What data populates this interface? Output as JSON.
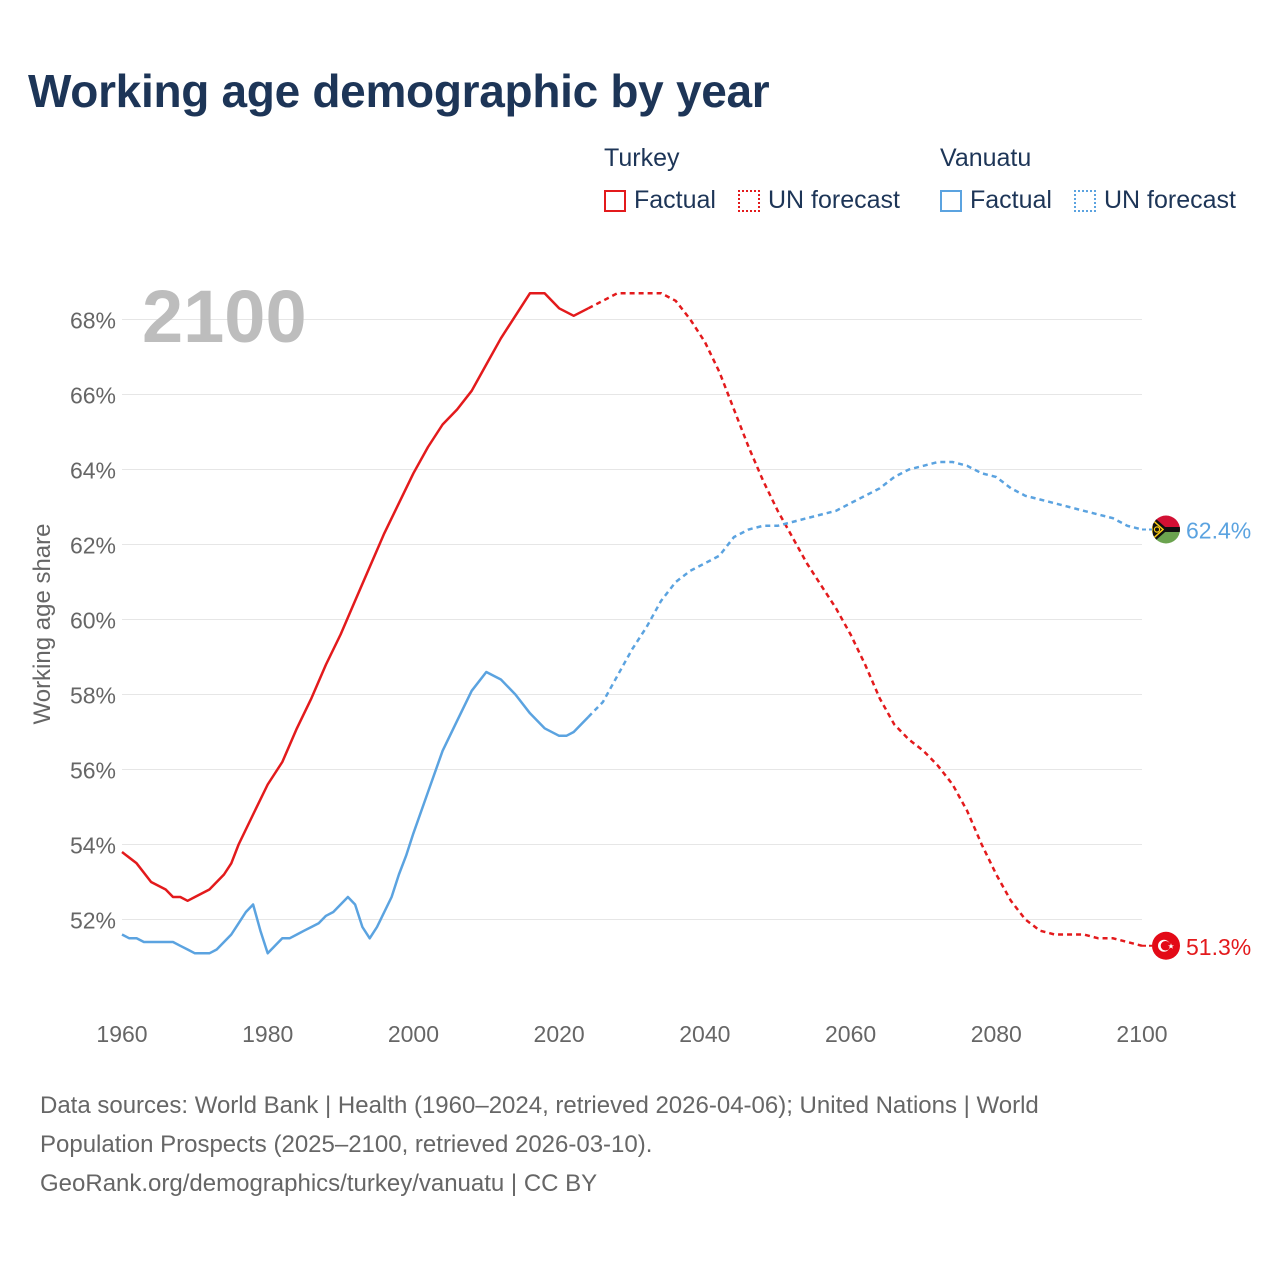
{
  "title": "Working age demographic by year",
  "legend": {
    "groups": [
      {
        "name": "Turkey",
        "factual_label": "Factual",
        "forecast_label": "UN forecast",
        "color": "#e31a1c"
      },
      {
        "name": "Vanuatu",
        "factual_label": "Factual",
        "forecast_label": "UN forecast",
        "color": "#5ba3e0"
      }
    ]
  },
  "year_label": "2100",
  "footer": {
    "line1": "Data sources: World Bank | Health (1960–2024, retrieved 2026-04-06); United Nations | World",
    "line2": "Population Prospects (2025–2100, retrieved 2026-03-10).",
    "line3": "GeoRank.org/demographics/turkey/vanuatu | CC BY"
  },
  "chart_data": {
    "type": "line",
    "title": "Working age demographic by year",
    "xlabel": "",
    "ylabel": "Working age share",
    "xlim": [
      1960,
      2100
    ],
    "ylim": [
      50,
      69.5
    ],
    "x_ticks": [
      1960,
      1980,
      2000,
      2020,
      2040,
      2060,
      2080,
      2100
    ],
    "y_ticks": [
      52,
      54,
      56,
      58,
      60,
      62,
      64,
      66,
      68
    ],
    "y_tick_suffix": "%",
    "grid": true,
    "factual_end_year": 2024,
    "series": [
      {
        "name": "Turkey",
        "color": "#e31a1c",
        "end_label": "51.3%",
        "points": [
          [
            1960,
            53.8
          ],
          [
            1962,
            53.5
          ],
          [
            1964,
            53.0
          ],
          [
            1966,
            52.8
          ],
          [
            1967,
            52.6
          ],
          [
            1968,
            52.6
          ],
          [
            1969,
            52.5
          ],
          [
            1970,
            52.6
          ],
          [
            1972,
            52.8
          ],
          [
            1974,
            53.2
          ],
          [
            1975,
            53.5
          ],
          [
            1976,
            54.0
          ],
          [
            1978,
            54.8
          ],
          [
            1980,
            55.6
          ],
          [
            1982,
            56.2
          ],
          [
            1984,
            57.1
          ],
          [
            1986,
            57.9
          ],
          [
            1988,
            58.8
          ],
          [
            1990,
            59.6
          ],
          [
            1992,
            60.5
          ],
          [
            1994,
            61.4
          ],
          [
            1996,
            62.3
          ],
          [
            1998,
            63.1
          ],
          [
            2000,
            63.9
          ],
          [
            2002,
            64.6
          ],
          [
            2004,
            65.2
          ],
          [
            2006,
            65.6
          ],
          [
            2008,
            66.1
          ],
          [
            2010,
            66.8
          ],
          [
            2012,
            67.5
          ],
          [
            2014,
            68.1
          ],
          [
            2016,
            68.7
          ],
          [
            2018,
            68.7
          ],
          [
            2020,
            68.3
          ],
          [
            2022,
            68.1
          ],
          [
            2024,
            68.3
          ],
          [
            2026,
            68.5
          ],
          [
            2028,
            68.7
          ],
          [
            2030,
            68.7
          ],
          [
            2032,
            68.7
          ],
          [
            2034,
            68.7
          ],
          [
            2036,
            68.5
          ],
          [
            2038,
            68.0
          ],
          [
            2040,
            67.4
          ],
          [
            2042,
            66.6
          ],
          [
            2044,
            65.6
          ],
          [
            2046,
            64.6
          ],
          [
            2048,
            63.7
          ],
          [
            2050,
            62.9
          ],
          [
            2052,
            62.2
          ],
          [
            2054,
            61.5
          ],
          [
            2056,
            60.9
          ],
          [
            2058,
            60.3
          ],
          [
            2060,
            59.6
          ],
          [
            2062,
            58.8
          ],
          [
            2064,
            57.9
          ],
          [
            2066,
            57.2
          ],
          [
            2068,
            56.8
          ],
          [
            2070,
            56.5
          ],
          [
            2072,
            56.1
          ],
          [
            2074,
            55.6
          ],
          [
            2076,
            54.9
          ],
          [
            2078,
            54.0
          ],
          [
            2080,
            53.2
          ],
          [
            2082,
            52.5
          ],
          [
            2084,
            52.0
          ],
          [
            2086,
            51.7
          ],
          [
            2088,
            51.6
          ],
          [
            2090,
            51.6
          ],
          [
            2092,
            51.6
          ],
          [
            2094,
            51.5
          ],
          [
            2096,
            51.5
          ],
          [
            2098,
            51.4
          ],
          [
            2100,
            51.3
          ]
        ]
      },
      {
        "name": "Vanuatu",
        "color": "#5ba3e0",
        "end_label": "62.4%",
        "points": [
          [
            1960,
            51.6
          ],
          [
            1961,
            51.5
          ],
          [
            1962,
            51.5
          ],
          [
            1963,
            51.4
          ],
          [
            1964,
            51.4
          ],
          [
            1965,
            51.4
          ],
          [
            1966,
            51.4
          ],
          [
            1967,
            51.4
          ],
          [
            1968,
            51.3
          ],
          [
            1969,
            51.2
          ],
          [
            1970,
            51.1
          ],
          [
            1971,
            51.1
          ],
          [
            1972,
            51.1
          ],
          [
            1973,
            51.2
          ],
          [
            1974,
            51.4
          ],
          [
            1975,
            51.6
          ],
          [
            1976,
            51.9
          ],
          [
            1977,
            52.2
          ],
          [
            1978,
            52.4
          ],
          [
            1979,
            51.7
          ],
          [
            1980,
            51.1
          ],
          [
            1981,
            51.3
          ],
          [
            1982,
            51.5
          ],
          [
            1983,
            51.5
          ],
          [
            1984,
            51.6
          ],
          [
            1985,
            51.7
          ],
          [
            1986,
            51.8
          ],
          [
            1987,
            51.9
          ],
          [
            1988,
            52.1
          ],
          [
            1989,
            52.2
          ],
          [
            1990,
            52.4
          ],
          [
            1991,
            52.6
          ],
          [
            1992,
            52.4
          ],
          [
            1993,
            51.8
          ],
          [
            1994,
            51.5
          ],
          [
            1995,
            51.8
          ],
          [
            1996,
            52.2
          ],
          [
            1997,
            52.6
          ],
          [
            1998,
            53.2
          ],
          [
            1999,
            53.7
          ],
          [
            2000,
            54.3
          ],
          [
            2002,
            55.4
          ],
          [
            2004,
            56.5
          ],
          [
            2006,
            57.3
          ],
          [
            2008,
            58.1
          ],
          [
            2010,
            58.6
          ],
          [
            2012,
            58.4
          ],
          [
            2014,
            58.0
          ],
          [
            2016,
            57.5
          ],
          [
            2018,
            57.1
          ],
          [
            2020,
            56.9
          ],
          [
            2021,
            56.9
          ],
          [
            2022,
            57.0
          ],
          [
            2024,
            57.4
          ],
          [
            2026,
            57.8
          ],
          [
            2028,
            58.5
          ],
          [
            2030,
            59.2
          ],
          [
            2032,
            59.8
          ],
          [
            2034,
            60.5
          ],
          [
            2036,
            61.0
          ],
          [
            2038,
            61.3
          ],
          [
            2040,
            61.5
          ],
          [
            2042,
            61.7
          ],
          [
            2044,
            62.2
          ],
          [
            2046,
            62.4
          ],
          [
            2048,
            62.5
          ],
          [
            2050,
            62.5
          ],
          [
            2052,
            62.6
          ],
          [
            2054,
            62.7
          ],
          [
            2056,
            62.8
          ],
          [
            2058,
            62.9
          ],
          [
            2060,
            63.1
          ],
          [
            2062,
            63.3
          ],
          [
            2064,
            63.5
          ],
          [
            2066,
            63.8
          ],
          [
            2068,
            64.0
          ],
          [
            2070,
            64.1
          ],
          [
            2072,
            64.2
          ],
          [
            2074,
            64.2
          ],
          [
            2076,
            64.1
          ],
          [
            2078,
            63.9
          ],
          [
            2080,
            63.8
          ],
          [
            2082,
            63.5
          ],
          [
            2084,
            63.3
          ],
          [
            2086,
            63.2
          ],
          [
            2088,
            63.1
          ],
          [
            2090,
            63.0
          ],
          [
            2092,
            62.9
          ],
          [
            2094,
            62.8
          ],
          [
            2096,
            62.7
          ],
          [
            2098,
            62.5
          ],
          [
            2100,
            62.4
          ]
        ]
      }
    ]
  }
}
